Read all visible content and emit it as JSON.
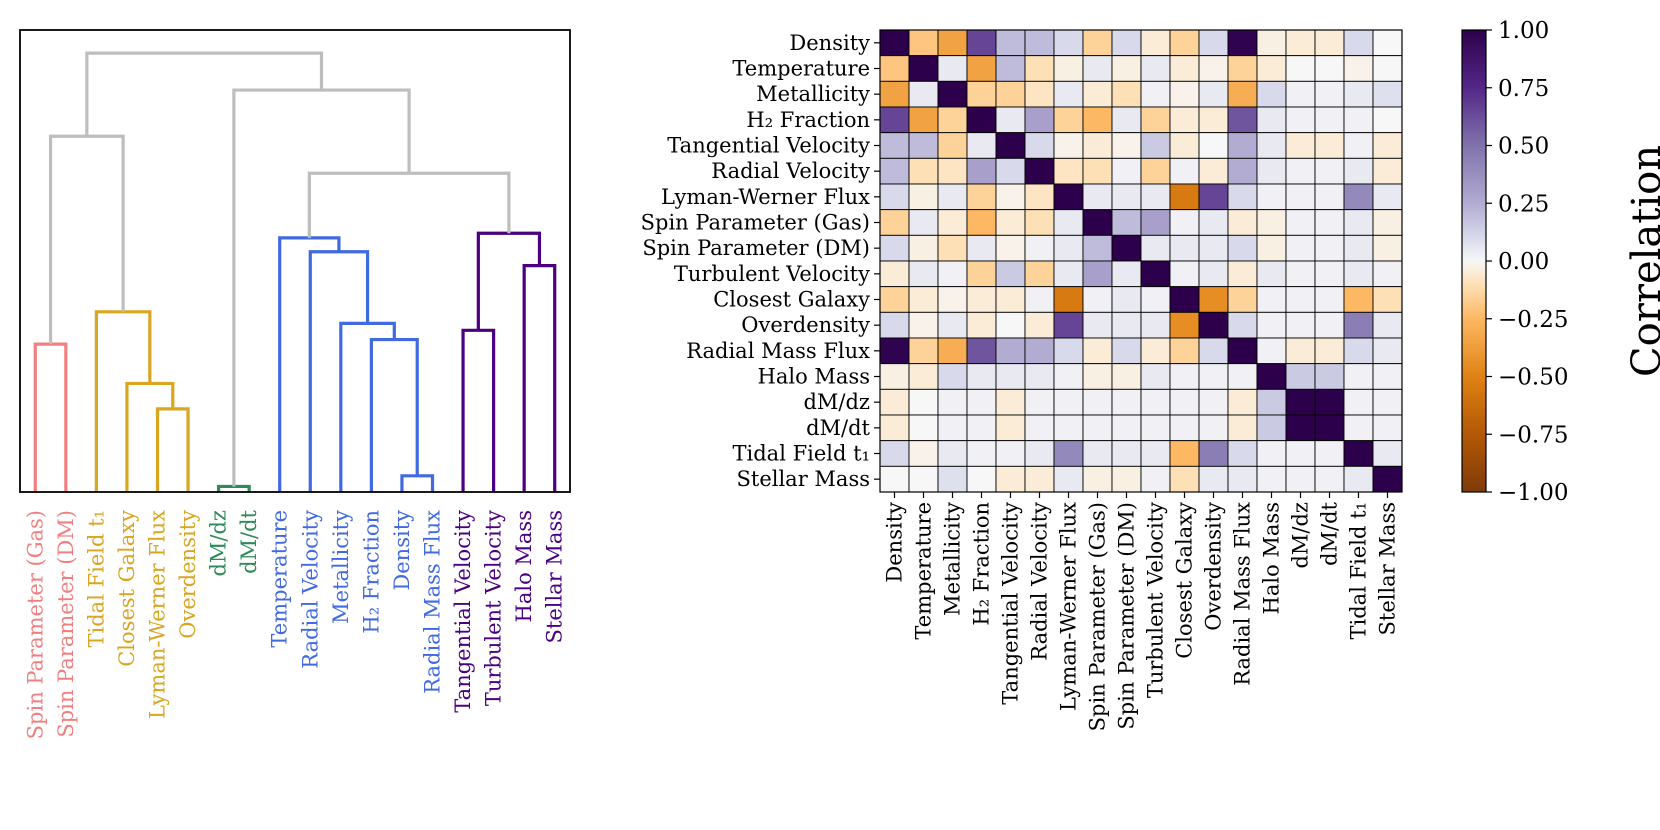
{
  "chart_data": [
    {
      "type": "dendrogram",
      "title": "",
      "axis_ticks_shown": false,
      "leaves": [
        {
          "label": "Spin Parameter (Gas)",
          "cluster": "salmon"
        },
        {
          "label": "Spin Parameter (DM)",
          "cluster": "salmon"
        },
        {
          "label": "Tidal Field t₁",
          "cluster": "gold"
        },
        {
          "label": "Closest Galaxy",
          "cluster": "gold"
        },
        {
          "label": "Lyman-Werner Flux",
          "cluster": "gold"
        },
        {
          "label": "Overdensity",
          "cluster": "gold"
        },
        {
          "label": "dM/dz",
          "cluster": "green"
        },
        {
          "label": "dM/dt",
          "cluster": "green"
        },
        {
          "label": "Temperature",
          "cluster": "blue"
        },
        {
          "label": "Radial Velocity",
          "cluster": "blue"
        },
        {
          "label": "Metallicity",
          "cluster": "blue"
        },
        {
          "label": "H₂ Fraction",
          "cluster": "blue"
        },
        {
          "label": "Density",
          "cluster": "blue"
        },
        {
          "label": "Radial Mass Flux",
          "cluster": "blue"
        },
        {
          "label": "Tangential Velocity",
          "cluster": "purple"
        },
        {
          "label": "Turbulent Velocity",
          "cluster": "purple"
        },
        {
          "label": "Halo Mass",
          "cluster": "purple"
        },
        {
          "label": "Stellar Mass",
          "cluster": "purple"
        }
      ],
      "linkage_height_range": [
        0,
        1
      ],
      "merges": [
        {
          "left": "leaf:12",
          "right": "leaf:13",
          "height": 0.035,
          "cluster": "blue"
        },
        {
          "left": "leaf:6",
          "right": "leaf:7",
          "height": 0.012,
          "cluster": "green"
        },
        {
          "left": "leaf:4",
          "right": "leaf:5",
          "height": 0.18,
          "cluster": "gold"
        },
        {
          "left": "leaf:11",
          "right": "node:0",
          "height": 0.33,
          "cluster": "blue"
        },
        {
          "left": "leaf:10",
          "right": "node:3",
          "height": 0.365,
          "cluster": "blue"
        },
        {
          "left": "leaf:3",
          "right": "node:2",
          "height": 0.235,
          "cluster": "gold"
        },
        {
          "left": "leaf:0",
          "right": "leaf:1",
          "height": 0.32,
          "cluster": "salmon"
        },
        {
          "left": "leaf:14",
          "right": "leaf:15",
          "height": 0.35,
          "cluster": "purple"
        },
        {
          "left": "leaf:16",
          "right": "leaf:17",
          "height": 0.49,
          "cluster": "purple"
        },
        {
          "left": "leaf:2",
          "right": "node:5",
          "height": 0.39,
          "cluster": "gold"
        },
        {
          "left": "leaf:9",
          "right": "node:4",
          "height": 0.52,
          "cluster": "blue"
        },
        {
          "left": "leaf:8",
          "right": "node:10",
          "height": 0.55,
          "cluster": "blue"
        },
        {
          "left": "node:7",
          "right": "node:8",
          "height": 0.56,
          "cluster": "purple"
        },
        {
          "left": "node:11",
          "right": "node:12",
          "height": 0.69,
          "cluster": "above"
        },
        {
          "left": "node:6",
          "right": "node:9",
          "height": 0.77,
          "cluster": "above"
        },
        {
          "left": "node:1",
          "right": "node:13",
          "height": 0.87,
          "cluster": "above"
        },
        {
          "left": "node:14",
          "right": "node:15",
          "height": 0.95,
          "cluster": "above"
        }
      ]
    },
    {
      "type": "heatmap",
      "title": "",
      "labels": [
        "Density",
        "Temperature",
        "Metallicity",
        "H₂ Fraction",
        "Tangential Velocity",
        "Radial Velocity",
        "Lyman-Werner Flux",
        "Spin Parameter (Gas)",
        "Spin Parameter (DM)",
        "Turbulent Velocity",
        "Closest Galaxy",
        "Overdensity",
        "Radial Mass Flux",
        "Halo Mass",
        "dM/dz",
        "dM/dt",
        "Tidal Field t₁",
        "Stellar Mass"
      ],
      "values": [
        [
          1.0,
          -0.2,
          -0.35,
          0.65,
          0.2,
          0.2,
          0.1,
          -0.15,
          0.1,
          -0.05,
          -0.15,
          0.1,
          0.98,
          -0.03,
          -0.05,
          -0.05,
          0.1,
          0.0
        ],
        [
          -0.2,
          1.0,
          0.05,
          -0.35,
          0.2,
          -0.1,
          -0.03,
          0.05,
          -0.03,
          0.05,
          -0.05,
          -0.02,
          -0.15,
          -0.05,
          0.0,
          0.0,
          -0.02,
          0.0
        ],
        [
          -0.35,
          0.05,
          1.0,
          -0.15,
          -0.15,
          -0.08,
          0.05,
          -0.05,
          -0.1,
          0.02,
          -0.02,
          0.05,
          -0.3,
          0.1,
          0.02,
          0.02,
          0.05,
          0.08
        ],
        [
          0.65,
          -0.35,
          -0.15,
          1.0,
          0.05,
          0.3,
          -0.15,
          -0.25,
          0.05,
          -0.15,
          -0.05,
          -0.05,
          0.6,
          0.05,
          0.02,
          0.02,
          0.02,
          0.0
        ],
        [
          0.2,
          0.2,
          -0.15,
          0.05,
          1.0,
          0.1,
          -0.02,
          -0.05,
          -0.02,
          0.15,
          -0.05,
          0.0,
          0.25,
          0.05,
          -0.05,
          -0.05,
          0.02,
          -0.05
        ],
        [
          0.2,
          -0.1,
          -0.08,
          0.3,
          0.1,
          1.0,
          -0.08,
          -0.1,
          0.02,
          -0.15,
          0.02,
          -0.05,
          0.25,
          0.05,
          0.02,
          0.02,
          0.05,
          -0.05
        ],
        [
          0.1,
          -0.03,
          0.05,
          -0.15,
          -0.02,
          -0.08,
          1.0,
          0.05,
          0.05,
          0.05,
          -0.55,
          0.65,
          0.1,
          0.02,
          0.02,
          0.02,
          0.4,
          0.05
        ],
        [
          -0.15,
          0.05,
          -0.05,
          -0.25,
          -0.05,
          -0.1,
          0.05,
          1.0,
          0.2,
          0.3,
          0.02,
          0.05,
          -0.05,
          -0.03,
          0.02,
          0.02,
          0.05,
          -0.03
        ],
        [
          0.1,
          -0.03,
          -0.1,
          0.05,
          -0.02,
          0.02,
          0.05,
          0.2,
          1.0,
          0.05,
          0.05,
          0.05,
          0.1,
          -0.03,
          0.02,
          0.02,
          0.05,
          -0.03
        ],
        [
          -0.05,
          0.05,
          0.02,
          -0.15,
          0.15,
          -0.15,
          0.05,
          0.3,
          0.05,
          1.0,
          0.02,
          0.05,
          -0.05,
          0.05,
          0.02,
          0.02,
          0.05,
          0.02
        ],
        [
          -0.15,
          -0.05,
          -0.02,
          -0.05,
          -0.05,
          0.02,
          -0.55,
          0.02,
          0.05,
          0.02,
          1.0,
          -0.45,
          -0.15,
          0.02,
          0.02,
          0.02,
          -0.25,
          -0.1
        ],
        [
          0.1,
          -0.02,
          0.05,
          -0.05,
          0.0,
          -0.05,
          0.65,
          0.05,
          0.05,
          0.05,
          -0.45,
          1.0,
          0.1,
          0.02,
          0.02,
          0.02,
          0.45,
          0.05
        ],
        [
          0.98,
          -0.15,
          -0.3,
          0.6,
          0.25,
          0.25,
          0.1,
          -0.05,
          0.1,
          -0.05,
          -0.15,
          0.1,
          1.0,
          0.02,
          -0.05,
          -0.05,
          0.1,
          0.05
        ],
        [
          -0.03,
          -0.05,
          0.1,
          0.05,
          0.05,
          0.05,
          0.02,
          -0.03,
          -0.03,
          0.05,
          0.02,
          0.02,
          0.02,
          1.0,
          0.15,
          0.15,
          0.02,
          0.02
        ],
        [
          -0.05,
          0.0,
          0.02,
          0.02,
          -0.05,
          0.02,
          0.02,
          0.02,
          0.02,
          0.02,
          0.02,
          0.02,
          -0.05,
          0.15,
          1.0,
          1.0,
          0.02,
          0.02
        ],
        [
          -0.05,
          0.0,
          0.02,
          0.02,
          -0.05,
          0.02,
          0.02,
          0.02,
          0.02,
          0.02,
          0.02,
          0.02,
          -0.05,
          0.15,
          1.0,
          1.0,
          0.02,
          0.02
        ],
        [
          0.1,
          -0.02,
          0.05,
          0.02,
          0.02,
          0.05,
          0.4,
          0.05,
          0.05,
          0.05,
          -0.25,
          0.45,
          0.1,
          0.02,
          0.02,
          0.02,
          1.0,
          0.05
        ],
        [
          0.0,
          0.0,
          0.08,
          0.0,
          -0.05,
          -0.05,
          0.05,
          -0.03,
          -0.03,
          0.02,
          -0.1,
          0.05,
          0.05,
          0.02,
          0.02,
          0.02,
          0.05,
          1.0
        ]
      ],
      "vmin": -1.0,
      "vmax": 1.0,
      "colorbar": {
        "label": "Correlation",
        "ticks": [
          1.0,
          0.75,
          0.5,
          0.25,
          0.0,
          -0.25,
          -0.5,
          -0.75,
          -1.0
        ],
        "tick_labels": [
          "1.00",
          "0.75",
          "0.50",
          "0.25",
          "0.00",
          "−0.25",
          "−0.50",
          "−0.75",
          "−1.00"
        ]
      }
    }
  ],
  "colors": {
    "salmon": "#f08080",
    "gold": "#daa520",
    "green": "#2e8b57",
    "blue": "#4169e1",
    "purple": "#4b0082",
    "above": "#bebebe",
    "cell_border": "#000000"
  }
}
